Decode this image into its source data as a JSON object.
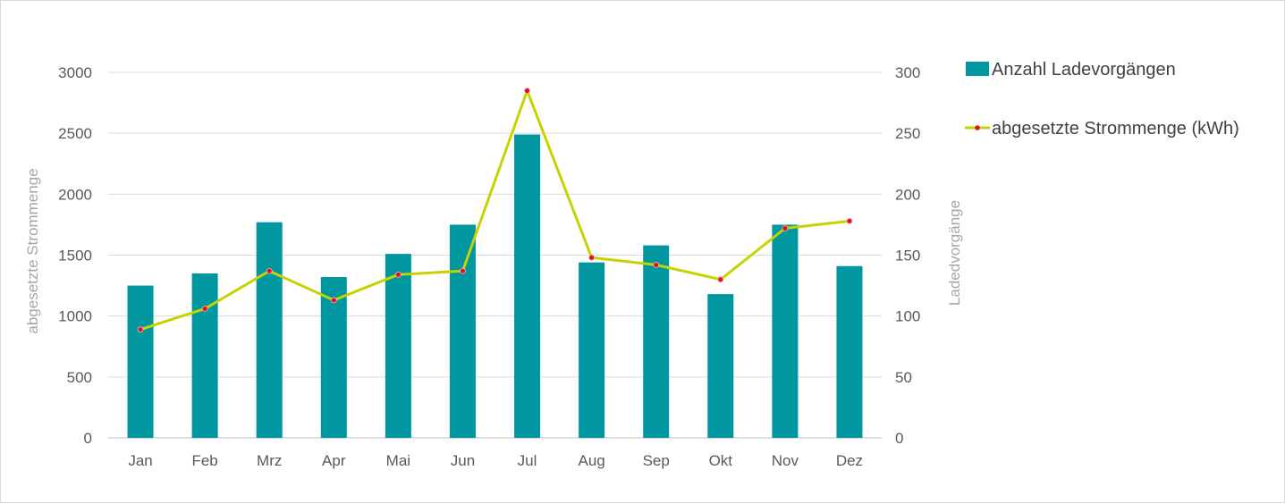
{
  "chart_data": {
    "type": "bar",
    "categories": [
      "Jan",
      "Feb",
      "Mrz",
      "Apr",
      "Mai",
      "Jun",
      "Jul",
      "Aug",
      "Sep",
      "Okt",
      "Nov",
      "Dez"
    ],
    "series": [
      {
        "name": "Anzahl Ladevorgängen",
        "type": "bar",
        "axis": "left",
        "color": "#0097a0",
        "values": [
          1250,
          1350,
          1770,
          1320,
          1510,
          1750,
          2490,
          1440,
          1580,
          1180,
          1750,
          1410
        ]
      },
      {
        "name": "abgesetzte Strommenge (kWh)",
        "type": "line",
        "axis": "right",
        "color": "#c5d400",
        "marker_color": "#e0102a",
        "values": [
          89,
          106,
          137,
          113,
          134,
          137,
          285,
          148,
          142,
          130,
          172,
          178
        ]
      }
    ],
    "y_left": {
      "label": "abgesetzte Strommenge",
      "lim": [
        0,
        3000
      ],
      "ticks": [
        0,
        500,
        1000,
        1500,
        2000,
        2500,
        3000
      ]
    },
    "y_right": {
      "label": "Ladedvorgänge",
      "lim": [
        0,
        300
      ],
      "ticks": [
        0,
        50,
        100,
        150,
        200,
        250,
        300
      ]
    },
    "grid": true,
    "legend": "right"
  }
}
